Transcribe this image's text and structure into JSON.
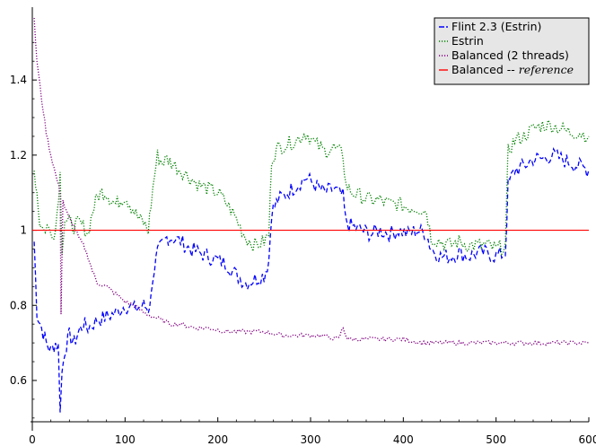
{
  "chart_data": {
    "type": "line",
    "title": "",
    "xlabel": "",
    "ylabel": "",
    "xlim": [
      0,
      600
    ],
    "ylim": [
      0.49,
      1.57
    ],
    "x_ticks": [
      0,
      100,
      200,
      300,
      400,
      500,
      600
    ],
    "x_tick_labels": [
      "0",
      "100",
      "200",
      "300",
      "400",
      "500",
      "600"
    ],
    "y_ticks": [
      0.6,
      0.8,
      1.0,
      1.2,
      1.4
    ],
    "y_tick_labels": [
      "0.6",
      "0.8",
      "1",
      "1.2",
      "1.4"
    ],
    "grid": false,
    "legend_position": "top-right",
    "series": [
      {
        "name": "Flint 2.3 (Estrin)",
        "color": "#0000ff",
        "style": "dashed",
        "points": [
          [
            2,
            0.97
          ],
          [
            5,
            0.78
          ],
          [
            10,
            0.74
          ],
          [
            15,
            0.7
          ],
          [
            20,
            0.68
          ],
          [
            25,
            0.7
          ],
          [
            28,
            0.69
          ],
          [
            30,
            0.53
          ],
          [
            32,
            0.62
          ],
          [
            35,
            0.68
          ],
          [
            40,
            0.72
          ],
          [
            45,
            0.7
          ],
          [
            50,
            0.73
          ],
          [
            55,
            0.75
          ],
          [
            60,
            0.74
          ],
          [
            70,
            0.76
          ],
          [
            80,
            0.77
          ],
          [
            90,
            0.78
          ],
          [
            100,
            0.8
          ],
          [
            110,
            0.79
          ],
          [
            120,
            0.8
          ],
          [
            125,
            0.79
          ],
          [
            128,
            0.82
          ],
          [
            130,
            0.88
          ],
          [
            135,
            0.94
          ],
          [
            140,
            0.96
          ],
          [
            145,
            0.98
          ],
          [
            150,
            0.98
          ],
          [
            160,
            0.97
          ],
          [
            170,
            0.95
          ],
          [
            180,
            0.94
          ],
          [
            190,
            0.93
          ],
          [
            200,
            0.92
          ],
          [
            210,
            0.91
          ],
          [
            220,
            0.88
          ],
          [
            230,
            0.86
          ],
          [
            240,
            0.87
          ],
          [
            250,
            0.88
          ],
          [
            255,
            0.92
          ],
          [
            258,
            1.05
          ],
          [
            265,
            1.08
          ],
          [
            275,
            1.1
          ],
          [
            285,
            1.12
          ],
          [
            295,
            1.14
          ],
          [
            305,
            1.12
          ],
          [
            315,
            1.1
          ],
          [
            325,
            1.11
          ],
          [
            335,
            1.09
          ],
          [
            338,
            1.02
          ],
          [
            345,
            1.01
          ],
          [
            355,
            1.0
          ],
          [
            365,
            0.99
          ],
          [
            375,
            1.0
          ],
          [
            385,
            0.99
          ],
          [
            395,
            1.0
          ],
          [
            405,
            0.99
          ],
          [
            415,
            1.0
          ],
          [
            425,
            0.99
          ],
          [
            430,
            0.95
          ],
          [
            440,
            0.93
          ],
          [
            450,
            0.93
          ],
          [
            460,
            0.94
          ],
          [
            470,
            0.93
          ],
          [
            480,
            0.94
          ],
          [
            490,
            0.94
          ],
          [
            500,
            0.93
          ],
          [
            510,
            0.94
          ],
          [
            513,
            1.12
          ],
          [
            520,
            1.16
          ],
          [
            530,
            1.17
          ],
          [
            540,
            1.19
          ],
          [
            550,
            1.19
          ],
          [
            560,
            1.2
          ],
          [
            570,
            1.19
          ],
          [
            580,
            1.18
          ],
          [
            590,
            1.17
          ],
          [
            600,
            1.16
          ]
        ]
      },
      {
        "name": "Estrin",
        "color": "#008000",
        "style": "dotted",
        "points": [
          [
            2,
            1.16
          ],
          [
            5,
            1.1
          ],
          [
            8,
            1.02
          ],
          [
            12,
            1.0
          ],
          [
            16,
            1.01
          ],
          [
            20,
            0.99
          ],
          [
            25,
            1.0
          ],
          [
            30,
            1.15
          ],
          [
            32,
            0.95
          ],
          [
            35,
            1.03
          ],
          [
            40,
            1.02
          ],
          [
            45,
            1.01
          ],
          [
            50,
            1.02
          ],
          [
            55,
            1.01
          ],
          [
            60,
            0.99
          ],
          [
            65,
            1.05
          ],
          [
            70,
            1.09
          ],
          [
            75,
            1.1
          ],
          [
            80,
            1.1
          ],
          [
            85,
            1.08
          ],
          [
            90,
            1.07
          ],
          [
            95,
            1.08
          ],
          [
            100,
            1.09
          ],
          [
            105,
            1.07
          ],
          [
            110,
            1.05
          ],
          [
            115,
            1.03
          ],
          [
            120,
            1.02
          ],
          [
            125,
            1.0
          ],
          [
            128,
            1.07
          ],
          [
            132,
            1.15
          ],
          [
            135,
            1.2
          ],
          [
            140,
            1.18
          ],
          [
            145,
            1.19
          ],
          [
            150,
            1.18
          ],
          [
            160,
            1.16
          ],
          [
            170,
            1.14
          ],
          [
            180,
            1.12
          ],
          [
            190,
            1.11
          ],
          [
            200,
            1.1
          ],
          [
            210,
            1.07
          ],
          [
            220,
            1.03
          ],
          [
            230,
            0.98
          ],
          [
            240,
            0.96
          ],
          [
            250,
            0.97
          ],
          [
            255,
            0.99
          ],
          [
            258,
            1.19
          ],
          [
            265,
            1.22
          ],
          [
            275,
            1.23
          ],
          [
            285,
            1.24
          ],
          [
            295,
            1.26
          ],
          [
            305,
            1.23
          ],
          [
            315,
            1.21
          ],
          [
            325,
            1.22
          ],
          [
            335,
            1.2
          ],
          [
            338,
            1.12
          ],
          [
            345,
            1.1
          ],
          [
            355,
            1.09
          ],
          [
            365,
            1.08
          ],
          [
            375,
            1.08
          ],
          [
            385,
            1.07
          ],
          [
            395,
            1.07
          ],
          [
            405,
            1.06
          ],
          [
            415,
            1.06
          ],
          [
            425,
            1.05
          ],
          [
            430,
            0.98
          ],
          [
            440,
            0.97
          ],
          [
            450,
            0.96
          ],
          [
            460,
            0.97
          ],
          [
            470,
            0.96
          ],
          [
            480,
            0.96
          ],
          [
            490,
            0.96
          ],
          [
            500,
            0.95
          ],
          [
            510,
            0.96
          ],
          [
            513,
            1.21
          ],
          [
            520,
            1.24
          ],
          [
            530,
            1.25
          ],
          [
            540,
            1.27
          ],
          [
            550,
            1.28
          ],
          [
            560,
            1.28
          ],
          [
            570,
            1.27
          ],
          [
            580,
            1.26
          ],
          [
            590,
            1.26
          ],
          [
            600,
            1.25
          ]
        ]
      },
      {
        "name": "Balanced (2 threads)",
        "color": "#800080",
        "style": "dotted",
        "points": [
          [
            2,
            1.56
          ],
          [
            5,
            1.45
          ],
          [
            10,
            1.35
          ],
          [
            15,
            1.26
          ],
          [
            20,
            1.2
          ],
          [
            25,
            1.15
          ],
          [
            30,
            1.1
          ],
          [
            31,
            0.78
          ],
          [
            33,
            1.08
          ],
          [
            35,
            1.06
          ],
          [
            40,
            1.03
          ],
          [
            45,
            1.01
          ],
          [
            50,
            0.98
          ],
          [
            55,
            0.96
          ],
          [
            60,
            0.93
          ],
          [
            65,
            0.89
          ],
          [
            70,
            0.86
          ],
          [
            80,
            0.85
          ],
          [
            90,
            0.83
          ],
          [
            100,
            0.81
          ],
          [
            110,
            0.8
          ],
          [
            120,
            0.78
          ],
          [
            130,
            0.77
          ],
          [
            140,
            0.76
          ],
          [
            150,
            0.75
          ],
          [
            160,
            0.75
          ],
          [
            175,
            0.74
          ],
          [
            190,
            0.74
          ],
          [
            210,
            0.73
          ],
          [
            230,
            0.73
          ],
          [
            250,
            0.73
          ],
          [
            270,
            0.72
          ],
          [
            290,
            0.72
          ],
          [
            310,
            0.72
          ],
          [
            330,
            0.71
          ],
          [
            335,
            0.74
          ],
          [
            340,
            0.71
          ],
          [
            360,
            0.71
          ],
          [
            380,
            0.71
          ],
          [
            400,
            0.71
          ],
          [
            420,
            0.7
          ],
          [
            440,
            0.7
          ],
          [
            460,
            0.7
          ],
          [
            480,
            0.7
          ],
          [
            500,
            0.7
          ],
          [
            520,
            0.7
          ],
          [
            540,
            0.7
          ],
          [
            560,
            0.7
          ],
          [
            580,
            0.7
          ],
          [
            600,
            0.7
          ]
        ]
      },
      {
        "name": "Balanced -- reference",
        "name_plain": "Balanced -- ",
        "name_italic": "reference",
        "color": "#ff0000",
        "style": "solid",
        "points": [
          [
            0,
            1.0
          ],
          [
            600,
            1.0
          ]
        ]
      }
    ]
  }
}
